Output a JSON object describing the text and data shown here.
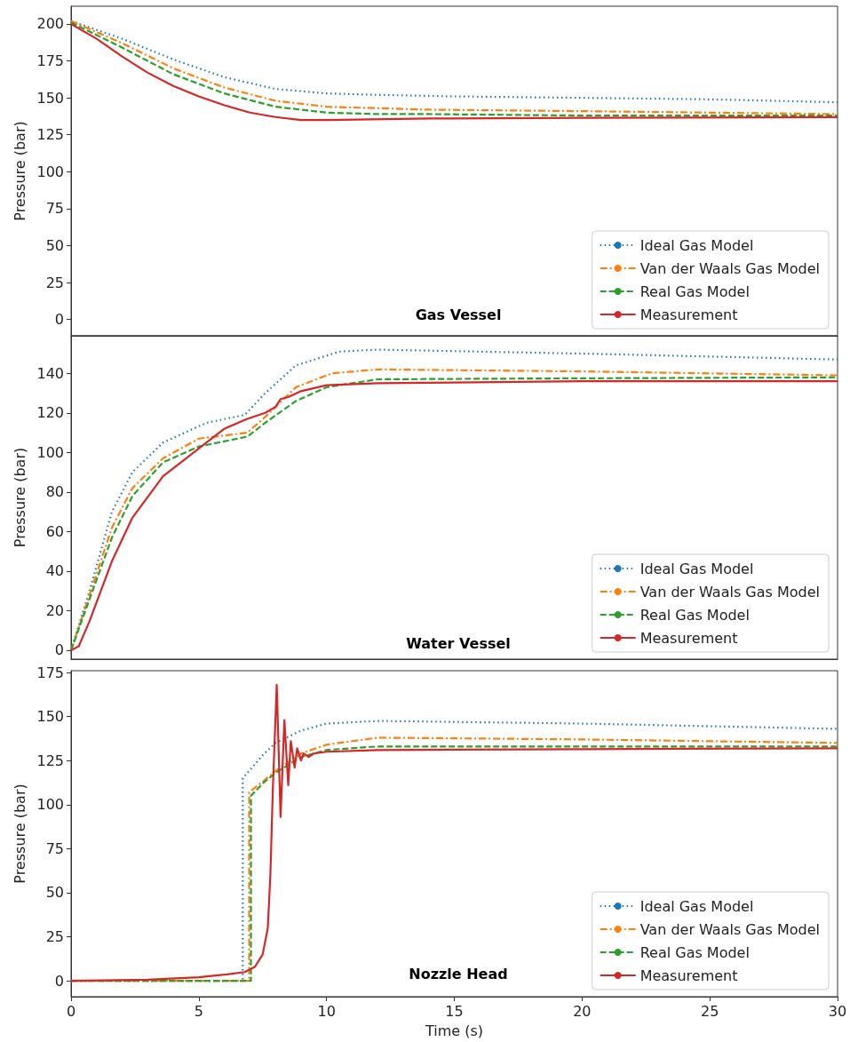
{
  "chart_data": [
    {
      "type": "line",
      "title": "Gas Vessel",
      "ylabel": "Pressure (bar)",
      "xlim": [
        0,
        30
      ],
      "xticks": [
        0,
        5,
        10,
        15,
        20,
        25,
        30
      ],
      "ylim": [
        -11,
        212
      ],
      "yticks": [
        0,
        25,
        50,
        75,
        100,
        125,
        150,
        175,
        200
      ],
      "tick_labels": "y",
      "grid": false,
      "legend": "bottom right",
      "marker": "none",
      "series": [
        {
          "name": "Ideal Gas Model",
          "color": "#1f77b4",
          "line_style": "dotted",
          "x": [
            0,
            2,
            4,
            6,
            8,
            10,
            12,
            15,
            20,
            25,
            30
          ],
          "values": [
            202,
            190,
            176,
            164,
            156,
            153,
            152,
            151,
            150,
            149,
            147
          ]
        },
        {
          "name": "Van der Waals Gas Model",
          "color": "#ff7f0e",
          "line_style": "dashdot",
          "x": [
            0,
            2,
            4,
            6,
            8,
            10,
            12,
            14,
            20,
            25,
            30
          ],
          "values": [
            202,
            187,
            170,
            157,
            148,
            144,
            143,
            142,
            141,
            140,
            139
          ]
        },
        {
          "name": "Real Gas Model",
          "color": "#2ca02c",
          "line_style": "dashed",
          "x": [
            0,
            2,
            4,
            6,
            8,
            10,
            12,
            14,
            20,
            25,
            30
          ],
          "values": [
            201,
            184,
            166,
            153,
            144,
            140,
            139,
            139,
            138,
            138,
            138
          ]
        },
        {
          "name": "Measurement",
          "color": "#d62728",
          "line_style": "solid",
          "x": [
            0,
            1,
            2,
            3,
            4,
            5,
            6,
            7,
            8,
            9,
            10,
            14,
            20,
            30
          ],
          "values": [
            200,
            190,
            178,
            167,
            158,
            151,
            145,
            140,
            137,
            135,
            135,
            136,
            136.5,
            137
          ]
        }
      ]
    },
    {
      "type": "line",
      "title": "Water Vessel",
      "ylabel": "Pressure (bar)",
      "xlim": [
        0,
        30
      ],
      "xticks": [
        0,
        5,
        10,
        15,
        20,
        25,
        30
      ],
      "ylim": [
        -4.5,
        159
      ],
      "yticks": [
        0,
        20,
        40,
        60,
        80,
        100,
        120,
        140
      ],
      "tick_labels": "y",
      "grid": false,
      "legend": "bottom right",
      "marker": "none",
      "series": [
        {
          "name": "Ideal Gas Model",
          "color": "#1f77b4",
          "line_style": "dotted",
          "x": [
            0,
            0.7,
            1.6,
            2.4,
            3.6,
            5.3,
            6.8,
            7.6,
            8.8,
            10.5,
            12,
            20,
            30
          ],
          "values": [
            0,
            29,
            70,
            90,
            105,
            115,
            119,
            130,
            144,
            151,
            152,
            150,
            147
          ]
        },
        {
          "name": "Van der Waals Gas Model",
          "color": "#ff7f0e",
          "line_style": "dashdot",
          "x": [
            0,
            0.7,
            1.6,
            2.4,
            3.6,
            5,
            6.9,
            7.6,
            8.8,
            10.2,
            12,
            20,
            30
          ],
          "values": [
            0,
            27,
            62,
            82,
            97,
            107,
            110,
            118,
            133,
            140,
            142,
            141,
            139
          ]
        },
        {
          "name": "Real Gas Model",
          "color": "#2ca02c",
          "line_style": "dashed",
          "x": [
            0,
            0.7,
            1.6,
            2.4,
            3.6,
            5,
            6.9,
            7.6,
            8.8,
            10,
            12,
            20,
            30
          ],
          "values": [
            0,
            25,
            57,
            78,
            95,
            103,
            108,
            115,
            126,
            133,
            137,
            137.5,
            138
          ]
        },
        {
          "name": "Measurement",
          "color": "#d62728",
          "line_style": "solid",
          "x": [
            0,
            0.3,
            0.7,
            1.6,
            2.4,
            3.6,
            5,
            6,
            6.9,
            7.6,
            8,
            8.2,
            8.5,
            9,
            10,
            12,
            20,
            30
          ],
          "values": [
            0,
            2,
            14,
            45,
            67,
            88,
            102,
            112,
            117,
            120,
            123,
            127,
            128,
            131,
            134,
            135,
            136,
            136
          ]
        }
      ]
    },
    {
      "type": "line",
      "title": "Nozzle Head",
      "xlabel": "Time (s)",
      "ylabel": "Pressure (bar)",
      "xlim": [
        0,
        30
      ],
      "xticks": [
        0,
        5,
        10,
        15,
        20,
        25,
        30
      ],
      "ylim": [
        -9,
        176
      ],
      "yticks": [
        0,
        25,
        50,
        75,
        100,
        125,
        150,
        175
      ],
      "grid": false,
      "legend": "bottom right",
      "marker": "none",
      "series": [
        {
          "name": "Ideal Gas Model",
          "color": "#1f77b4",
          "line_style": "dotted",
          "x": [
            0,
            6.72,
            6.72,
            7.5,
            8,
            9,
            10,
            12,
            20,
            30
          ],
          "values": [
            0,
            0,
            115,
            128,
            135,
            142,
            146,
            147.5,
            146,
            143
          ]
        },
        {
          "name": "Van der Waals Gas Model",
          "color": "#ff7f0e",
          "line_style": "dashdot",
          "x": [
            0,
            6.97,
            6.97,
            7.5,
            8,
            9,
            10,
            12,
            20,
            30
          ],
          "values": [
            0,
            0,
            107,
            113,
            119,
            129,
            134,
            138,
            137,
            135
          ]
        },
        {
          "name": "Real Gas Model",
          "color": "#2ca02c",
          "line_style": "dashed",
          "x": [
            0,
            7.04,
            7.04,
            7.5,
            8,
            9,
            10,
            12,
            20,
            30
          ],
          "values": [
            0,
            0,
            105,
            112,
            118,
            127,
            131,
            133,
            133,
            133
          ]
        },
        {
          "name": "Measurement",
          "color": "#d62728",
          "line_style": "solid",
          "x": [
            0,
            3,
            5,
            6,
            6.8,
            7.2,
            7.5,
            7.7,
            7.8,
            7.9,
            8.05,
            8.2,
            8.35,
            8.5,
            8.6,
            8.75,
            8.85,
            9,
            9.1,
            9.3,
            9.5,
            10,
            12,
            20,
            30
          ],
          "values": [
            0,
            0.6,
            2,
            3.5,
            5,
            8,
            15,
            30,
            60,
            110,
            168,
            93,
            148,
            111,
            136,
            121,
            132,
            125,
            129,
            127,
            129,
            130,
            131,
            131.5,
            132
          ]
        }
      ]
    }
  ]
}
